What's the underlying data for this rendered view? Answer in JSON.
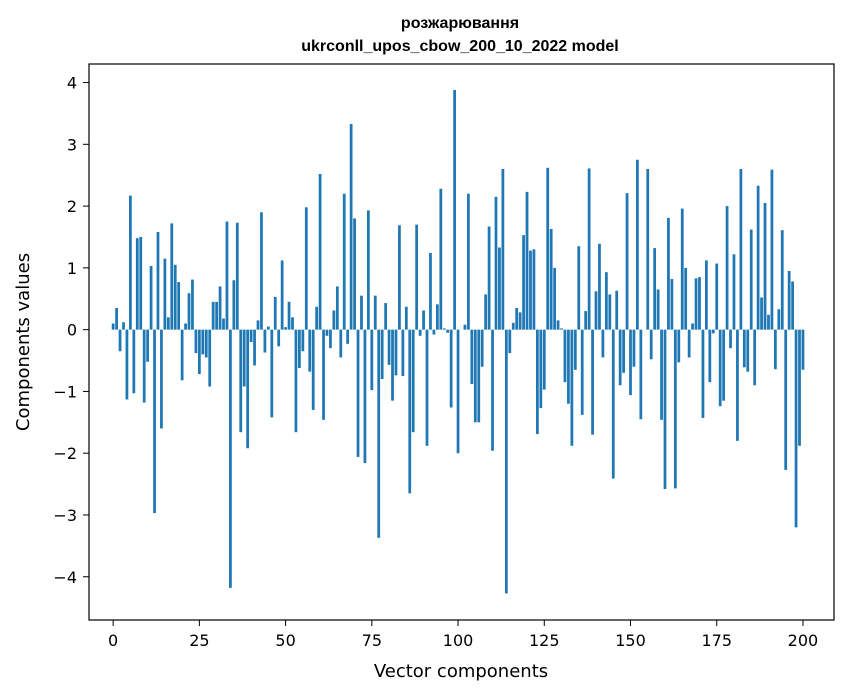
{
  "chart_data": {
    "type": "bar",
    "title": "розжарювання",
    "subtitle": "ukrconll_upos_cbow_200_10_2022 model",
    "xlabel": "Vector components",
    "ylabel": "Components values",
    "xlim": [
      -7,
      209
    ],
    "ylim": [
      -4.7,
      4.3
    ],
    "xticks": [
      0,
      25,
      50,
      75,
      100,
      125,
      150,
      175,
      200
    ],
    "xtick_labels": [
      "0",
      "25",
      "50",
      "75",
      "100",
      "125",
      "150",
      "175",
      "200"
    ],
    "yticks": [
      -4,
      -3,
      -2,
      -1,
      0,
      1,
      2,
      3,
      4
    ],
    "ytick_labels": [
      "−4",
      "−3",
      "−2",
      "−1",
      "0",
      "1",
      "2",
      "3",
      "4"
    ],
    "grid": false,
    "color": "#1f77b4",
    "values": [
      0.1,
      0.35,
      -0.35,
      0.12,
      -1.13,
      2.17,
      -1.03,
      1.48,
      1.5,
      -1.18,
      -0.52,
      1.03,
      -2.97,
      1.58,
      -1.6,
      1.15,
      0.2,
      1.72,
      1.05,
      0.77,
      -0.82,
      0.1,
      0.59,
      0.81,
      -0.38,
      -0.72,
      -0.4,
      -0.45,
      -0.92,
      0.45,
      0.45,
      0.7,
      0.18,
      1.75,
      -4.18,
      0.8,
      1.73,
      -1.66,
      -0.92,
      -1.92,
      -0.2,
      -0.58,
      0.15,
      1.9,
      -0.37,
      0.05,
      -1.42,
      0.53,
      -0.27,
      1.12,
      0.04,
      0.45,
      0.2,
      -1.66,
      -0.62,
      -0.35,
      1.98,
      -0.68,
      -1.3,
      0.37,
      2.52,
      -1.46,
      -0.1,
      -0.3,
      0.31,
      0.7,
      -0.45,
      2.2,
      -0.23,
      3.33,
      1.8,
      -2.06,
      0.55,
      -2.16,
      1.93,
      -0.98,
      0.55,
      -3.37,
      -0.8,
      0.43,
      -0.57,
      -1.15,
      -0.74,
      1.69,
      -0.75,
      0.37,
      -2.65,
      -1.66,
      1.7,
      -0.1,
      0.31,
      -1.88,
      1.24,
      -0.08,
      0.41,
      2.28,
      0.02,
      -0.05,
      -1.26,
      3.88,
      -2.0,
      0.0,
      0.08,
      2.2,
      -0.88,
      -1.5,
      -1.5,
      -0.6,
      0.57,
      1.67,
      -1.96,
      2.15,
      1.33,
      2.6,
      -4.27,
      -0.38,
      0.11,
      0.35,
      0.28,
      1.53,
      2.23,
      1.28,
      1.3,
      -1.69,
      -1.27,
      -0.97,
      2.62,
      1.63,
      1.0,
      0.15,
      0.02,
      -0.85,
      -1.2,
      -1.88,
      -0.65,
      1.35,
      -1.38,
      0.3,
      2.61,
      -1.7,
      0.62,
      1.39,
      -0.45,
      0.93,
      0.57,
      -2.41,
      0.63,
      -0.9,
      -0.7,
      2.21,
      -1.06,
      -0.6,
      2.75,
      -1.45,
      0.0,
      2.6,
      -0.48,
      1.32,
      0.65,
      -1.46,
      -2.58,
      1.81,
      0.82,
      -2.57,
      -0.53,
      1.96,
      1.0,
      -0.45,
      0.1,
      0.83,
      0.85,
      -1.43,
      1.12,
      -0.85,
      -0.06,
      1.07,
      -1.24,
      -1.15,
      2.0,
      -0.3,
      1.22,
      -1.8,
      2.6,
      -0.61,
      -0.68,
      1.62,
      -0.9,
      2.33,
      0.52,
      2.05,
      0.24,
      2.59,
      -0.64,
      0.33,
      1.61,
      -2.27,
      0.95,
      0.78,
      -3.2,
      -1.88,
      -0.65
    ]
  }
}
